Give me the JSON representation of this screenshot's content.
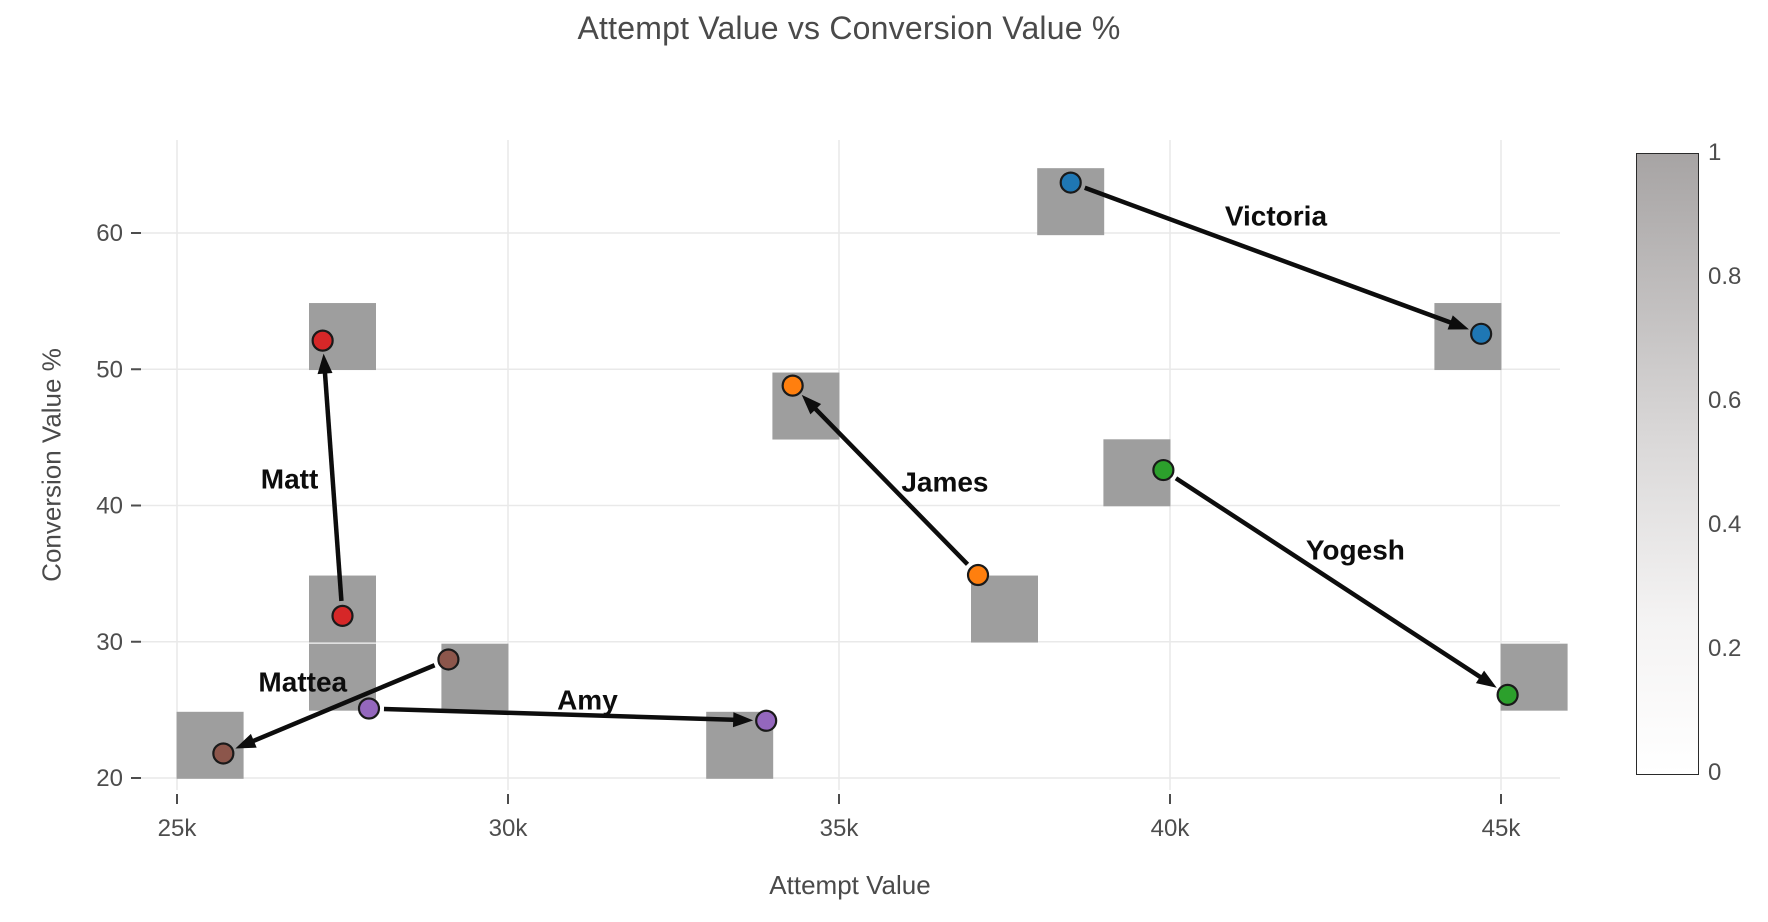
{
  "chart_data": {
    "type": "scatter",
    "title": "Attempt Value vs Conversion Value %",
    "xlabel": "Attempt Value",
    "ylabel": "Conversion Value %",
    "x_unit": "thousands",
    "xlim": [
      24.4,
      45.9
    ],
    "ylim": [
      18.5,
      66.8
    ],
    "grid": true,
    "x_ticks": [
      25,
      30,
      35,
      40,
      45
    ],
    "x_tick_labels": [
      "25k",
      "30k",
      "35k",
      "40k",
      "45k"
    ],
    "y_ticks": [
      20,
      30,
      40,
      50,
      60
    ],
    "y_tick_labels": [
      "20",
      "30",
      "40",
      "50",
      "60"
    ],
    "people": [
      {
        "name": "Victoria",
        "color": "#1f77b4",
        "start": {
          "x": 38.5,
          "y": 63.7
        },
        "end": {
          "x": 44.7,
          "y": 52.6
        },
        "label_pos": {
          "x": 41.6,
          "y": 61.2
        }
      },
      {
        "name": "Matt",
        "color": "#d62728",
        "start": {
          "x": 27.5,
          "y": 31.9
        },
        "end": {
          "x": 27.2,
          "y": 52.1
        },
        "label_pos": {
          "x": 26.7,
          "y": 41.9
        }
      },
      {
        "name": "James",
        "color": "#ff7f0e",
        "start": {
          "x": 37.1,
          "y": 34.9
        },
        "end": {
          "x": 34.3,
          "y": 48.8
        },
        "label_pos": {
          "x": 36.6,
          "y": 41.7
        }
      },
      {
        "name": "Yogesh",
        "color": "#2ca02c",
        "start": {
          "x": 39.9,
          "y": 42.6
        },
        "end": {
          "x": 45.1,
          "y": 26.1
        },
        "label_pos": {
          "x": 42.8,
          "y": 36.7
        }
      },
      {
        "name": "Mattea",
        "color": "#8c564b",
        "start": {
          "x": 29.1,
          "y": 28.7
        },
        "end": {
          "x": 25.7,
          "y": 21.8
        },
        "label_pos": {
          "x": 26.9,
          "y": 27.0
        }
      },
      {
        "name": "Amy",
        "color": "#9467bd",
        "start": {
          "x": 27.9,
          "y": 25.1
        },
        "end": {
          "x": 33.9,
          "y": 24.2
        },
        "label_pos": {
          "x": 31.2,
          "y": 25.7
        }
      }
    ],
    "squares": [
      {
        "x": 38.5,
        "y": 62.3
      },
      {
        "x": 44.5,
        "y": 52.4
      },
      {
        "x": 27.5,
        "y": 52.4
      },
      {
        "x": 27.5,
        "y": 32.4
      },
      {
        "x": 27.5,
        "y": 27.4
      },
      {
        "x": 25.5,
        "y": 22.4
      },
      {
        "x": 29.5,
        "y": 27.4
      },
      {
        "x": 33.5,
        "y": 22.4
      },
      {
        "x": 34.5,
        "y": 47.3
      },
      {
        "x": 37.5,
        "y": 32.4
      },
      {
        "x": 39.5,
        "y": 42.4
      },
      {
        "x": 45.5,
        "y": 27.4
      }
    ],
    "square_color": "#9e9e9e",
    "square_size_px": 67,
    "arrow_color": "#0d0d0d",
    "colorbar": {
      "min": 0,
      "max": 1,
      "tick_labels": [
        "1",
        "0.8",
        "0.6",
        "0.4",
        "0.2",
        "0"
      ],
      "top_color": "#a7a4a4",
      "bottom_color": "#ffffff",
      "legend_position": "right"
    }
  }
}
